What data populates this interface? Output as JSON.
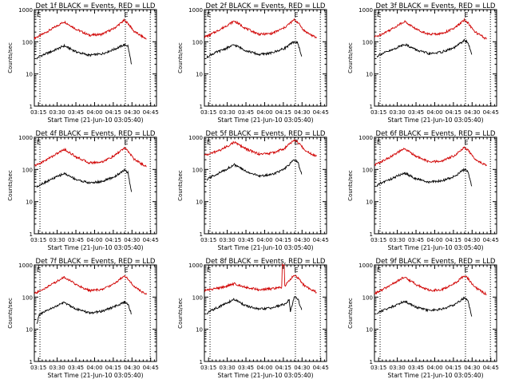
{
  "figure": {
    "background": "#ffffff",
    "axis_color": "#000000"
  },
  "chart_data": [
    {
      "type": "line",
      "title": "Det 1f BLACK = Events, RED = LLD",
      "xlabel": "Start Time (21-Jun-10 03:05:40)",
      "ylabel": "Counts/sec",
      "yscale": "log",
      "ylim": [
        1,
        1000
      ],
      "yticks": [
        "1",
        "10",
        "100",
        "1000"
      ],
      "xticks": [
        "03:15",
        "03:30",
        "03:45",
        "04:00",
        "04:15",
        "04:30",
        "04:45"
      ],
      "xlim_min": [
        6,
        104
      ],
      "vlines_min": [
        10.5,
        79,
        99
      ],
      "marker": "E",
      "marker_at_min": 80,
      "series": [
        {
          "color": "#d00000",
          "x": [
            6,
            10,
            20,
            30,
            40,
            50,
            60,
            70,
            78,
            81,
            86,
            92,
            96
          ],
          "y": [
            130,
            150,
            250,
            420,
            240,
            160,
            170,
            260,
            460,
            380,
            210,
            150,
            120
          ]
        },
        {
          "color": "#000000",
          "x": [
            8,
            10,
            20,
            30,
            40,
            50,
            60,
            70,
            78,
            81,
            84
          ],
          "y": [
            30,
            35,
            50,
            75,
            48,
            38,
            42,
            58,
            80,
            75,
            20
          ]
        }
      ]
    },
    {
      "type": "line",
      "title": "Det 2f BLACK = Events, RED = LLD",
      "xlabel": "Start Time (21-Jun-10 03:05:40)",
      "ylabel": "Counts/sec",
      "yscale": "log",
      "ylim": [
        1,
        1000
      ],
      "yticks": [
        "1",
        "10",
        "100",
        "1000"
      ],
      "xticks": [
        "03:15",
        "03:30",
        "03:45",
        "04:00",
        "04:15",
        "04:30",
        "04:45"
      ],
      "xlim_min": [
        6,
        104
      ],
      "vlines_min": [
        10.5,
        79,
        99
      ],
      "marker": "E",
      "marker_at_min": 80,
      "series": [
        {
          "color": "#d00000",
          "x": [
            6,
            10,
            20,
            30,
            40,
            50,
            60,
            70,
            78,
            81,
            86,
            92,
            96
          ],
          "y": [
            140,
            160,
            260,
            440,
            250,
            170,
            180,
            270,
            480,
            400,
            220,
            160,
            130
          ]
        },
        {
          "color": "#000000",
          "x": [
            8,
            10,
            20,
            30,
            40,
            50,
            60,
            70,
            78,
            81,
            84
          ],
          "y": [
            32,
            38,
            55,
            80,
            52,
            40,
            45,
            62,
            100,
            90,
            35
          ]
        }
      ]
    },
    {
      "type": "line",
      "title": "Det 3f BLACK = Events, RED = LLD",
      "xlabel": "Start Time (21-Jun-10 03:05:40)",
      "ylabel": "Counts/sec",
      "yscale": "log",
      "ylim": [
        1,
        1000
      ],
      "yticks": [
        "1",
        "10",
        "100",
        "1000"
      ],
      "xticks": [
        "03:15",
        "03:30",
        "03:45",
        "04:00",
        "04:15",
        "04:30",
        "04:45"
      ],
      "xlim_min": [
        6,
        104
      ],
      "vlines_min": [
        10.5,
        79,
        99
      ],
      "marker": "E",
      "marker_at_min": 80,
      "series": [
        {
          "color": "#d00000",
          "x": [
            6,
            10,
            20,
            30,
            40,
            50,
            60,
            70,
            78,
            81,
            86,
            92,
            96
          ],
          "y": [
            140,
            160,
            250,
            430,
            240,
            170,
            180,
            260,
            470,
            390,
            210,
            150,
            120
          ]
        },
        {
          "color": "#000000",
          "x": [
            8,
            10,
            20,
            30,
            40,
            50,
            60,
            70,
            78,
            81,
            84
          ],
          "y": [
            35,
            40,
            55,
            85,
            55,
            42,
            48,
            65,
            110,
            95,
            40
          ]
        }
      ]
    },
    {
      "type": "line",
      "title": "Det 4f BLACK = Events, RED = LLD",
      "xlabel": "Start Time (21-Jun-10 03:05:40)",
      "ylabel": "Counts/sec",
      "yscale": "log",
      "ylim": [
        1,
        1000
      ],
      "yticks": [
        "1",
        "10",
        "100",
        "1000"
      ],
      "xticks": [
        "03:15",
        "03:30",
        "03:45",
        "04:00",
        "04:15",
        "04:30",
        "04:45"
      ],
      "xlim_min": [
        6,
        104
      ],
      "vlines_min": [
        10.5,
        79,
        99
      ],
      "marker": "E",
      "marker_at_min": 80,
      "series": [
        {
          "color": "#d00000",
          "x": [
            6,
            10,
            20,
            30,
            40,
            50,
            60,
            70,
            78,
            81,
            86,
            92,
            96
          ],
          "y": [
            130,
            150,
            250,
            420,
            240,
            160,
            170,
            260,
            460,
            380,
            210,
            150,
            120
          ]
        },
        {
          "color": "#000000",
          "x": [
            8,
            10,
            20,
            30,
            40,
            50,
            60,
            70,
            78,
            81,
            84
          ],
          "y": [
            28,
            33,
            50,
            75,
            48,
            38,
            42,
            58,
            95,
            80,
            20
          ]
        }
      ]
    },
    {
      "type": "line",
      "title": "Det 5f BLACK = Events, RED = LLD",
      "xlabel": "Start Time (21-Jun-10 03:05:40)",
      "ylabel": "Counts/sec",
      "yscale": "log",
      "ylim": [
        1,
        1000
      ],
      "yticks": [
        "1",
        "10",
        "100",
        "1000"
      ],
      "xticks": [
        "03:15",
        "03:30",
        "03:45",
        "04:00",
        "04:15",
        "04:30",
        "04:45"
      ],
      "xlim_min": [
        6,
        104
      ],
      "vlines_min": [
        10.5,
        79,
        99
      ],
      "marker": "E",
      "marker_at_min": 80,
      "series": [
        {
          "color": "#d00000",
          "x": [
            6,
            10,
            20,
            30,
            40,
            50,
            60,
            70,
            78,
            81,
            86,
            92,
            96
          ],
          "y": [
            280,
            300,
            420,
            700,
            420,
            300,
            320,
            440,
            820,
            700,
            420,
            300,
            260
          ]
        },
        {
          "color": "#000000",
          "x": [
            8,
            10,
            20,
            30,
            40,
            50,
            60,
            70,
            78,
            81,
            84
          ],
          "y": [
            45,
            55,
            85,
            140,
            85,
            62,
            70,
            100,
            200,
            170,
            70
          ]
        }
      ]
    },
    {
      "type": "line",
      "title": "Det 6f BLACK = Events, RED = LLD",
      "xlabel": "Start Time (21-Jun-10 03:05:40)",
      "ylabel": "Counts/sec",
      "yscale": "log",
      "ylim": [
        1,
        1000
      ],
      "yticks": [
        "1",
        "10",
        "100",
        "1000"
      ],
      "xticks": [
        "03:15",
        "03:30",
        "03:45",
        "04:00",
        "04:15",
        "04:30",
        "04:45"
      ],
      "xlim_min": [
        6,
        104
      ],
      "vlines_min": [
        10.5,
        79,
        99
      ],
      "marker": "E",
      "marker_at_min": 80,
      "series": [
        {
          "color": "#d00000",
          "x": [
            6,
            10,
            20,
            30,
            40,
            50,
            60,
            70,
            78,
            81,
            86,
            92,
            96
          ],
          "y": [
            140,
            160,
            260,
            440,
            250,
            170,
            180,
            270,
            480,
            400,
            220,
            160,
            130
          ]
        },
        {
          "color": "#000000",
          "x": [
            8,
            10,
            20,
            30,
            40,
            50,
            60,
            70,
            78,
            81,
            84
          ],
          "y": [
            30,
            36,
            52,
            78,
            50,
            40,
            44,
            60,
            100,
            85,
            30
          ]
        }
      ]
    },
    {
      "type": "line",
      "title": "Det 7f BLACK = Events, RED = LLD",
      "xlabel": "Start Time (21-Jun-10 03:05:40)",
      "ylabel": "Counts/sec",
      "yscale": "log",
      "ylim": [
        1,
        1000
      ],
      "yticks": [
        "1",
        "10",
        "100",
        "1000"
      ],
      "xticks": [
        "03:15",
        "03:30",
        "03:45",
        "04:00",
        "04:15",
        "04:30",
        "04:45"
      ],
      "xlim_min": [
        6,
        104
      ],
      "vlines_min": [
        10.5,
        79,
        99
      ],
      "marker": "E",
      "marker_at_min": 80,
      "series": [
        {
          "color": "#d00000",
          "x": [
            6,
            10,
            20,
            30,
            40,
            50,
            60,
            70,
            78,
            81,
            86,
            92,
            96
          ],
          "y": [
            130,
            150,
            250,
            420,
            240,
            160,
            170,
            260,
            460,
            380,
            210,
            150,
            120
          ]
        },
        {
          "color": "#000000",
          "x": [
            8,
            10,
            20,
            30,
            40,
            50,
            60,
            70,
            78,
            81,
            84
          ],
          "y": [
            15,
            28,
            45,
            68,
            42,
            32,
            36,
            50,
            70,
            60,
            30
          ]
        }
      ]
    },
    {
      "type": "line",
      "title": "Det 8f BLACK = Events, RED = LLD",
      "xlabel": "Start Time (21-Jun-10 03:05:40)",
      "ylabel": "Counts/sec",
      "yscale": "log",
      "ylim": [
        1,
        1000
      ],
      "yticks": [
        "1",
        "10",
        "100",
        "1000"
      ],
      "xticks": [
        "03:15",
        "03:30",
        "03:45",
        "04:00",
        "04:15",
        "04:30",
        "04:45"
      ],
      "xlim_min": [
        6,
        104
      ],
      "vlines_min": [
        10.5,
        79,
        99
      ],
      "marker": "E",
      "marker_at_min": 80,
      "series": [
        {
          "color": "#d00000",
          "x": [
            6,
            10,
            20,
            30,
            40,
            50,
            60,
            68,
            68.5,
            70,
            70.5,
            72,
            78,
            81,
            86,
            92,
            96
          ],
          "y": [
            160,
            170,
            200,
            260,
            200,
            170,
            180,
            200,
            1000,
            1000,
            220,
            260,
            480,
            400,
            230,
            170,
            140
          ]
        },
        {
          "color": "#000000",
          "x": [
            8,
            10,
            20,
            30,
            40,
            50,
            60,
            70,
            74,
            75,
            78,
            81,
            84
          ],
          "y": [
            30,
            36,
            55,
            85,
            52,
            42,
            46,
            60,
            80,
            35,
            100,
            90,
            40
          ]
        }
      ]
    },
    {
      "type": "line",
      "title": "Det 9f BLACK = Events, RED = LLD",
      "xlabel": "Start Time (21-Jun-10 03:05:40)",
      "ylabel": "Counts/sec",
      "yscale": "log",
      "ylim": [
        1,
        1000
      ],
      "yticks": [
        "1",
        "10",
        "100",
        "1000"
      ],
      "xticks": [
        "03:15",
        "03:30",
        "03:45",
        "04:00",
        "04:15",
        "04:30",
        "04:45"
      ],
      "xlim_min": [
        6,
        104
      ],
      "vlines_min": [
        10.5,
        79,
        99
      ],
      "marker": "E",
      "marker_at_min": 80,
      "series": [
        {
          "color": "#d00000",
          "x": [
            6,
            10,
            20,
            30,
            40,
            50,
            60,
            70,
            78,
            81,
            86,
            92,
            96
          ],
          "y": [
            130,
            150,
            250,
            420,
            240,
            160,
            170,
            260,
            460,
            380,
            210,
            150,
            120
          ]
        },
        {
          "color": "#000000",
          "x": [
            8,
            10,
            20,
            30,
            40,
            50,
            60,
            70,
            78,
            81,
            84
          ],
          "y": [
            30,
            35,
            50,
            75,
            48,
            38,
            42,
            58,
            95,
            80,
            25
          ]
        }
      ]
    }
  ]
}
